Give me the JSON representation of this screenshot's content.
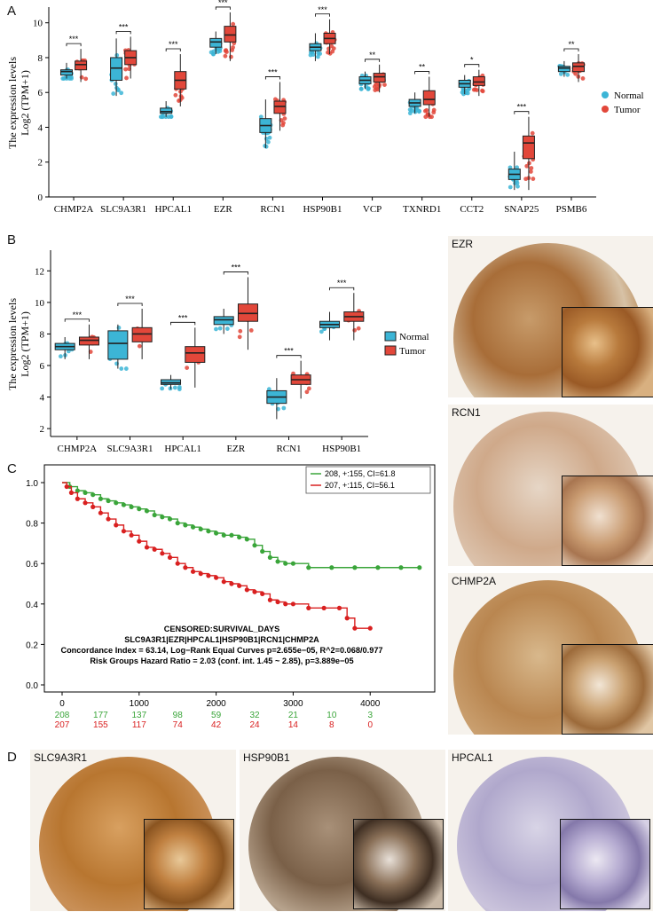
{
  "panels": {
    "a": "A",
    "b": "B",
    "c": "C",
    "d": "D"
  },
  "colors": {
    "normal": "#3cb5d6",
    "tumor": "#e2473a",
    "green": "#3aa53a",
    "red": "#d92020"
  },
  "panel_a": {
    "ylabel": "The expression levels",
    "ylabel2": "Log2 (TPM+1)",
    "legend": [
      "Normal",
      "Tumor"
    ],
    "chart_data": {
      "type": "box",
      "ylim": [
        0,
        10.8
      ],
      "yticks": [
        0,
        2,
        4,
        6,
        8,
        10
      ],
      "categories": [
        "CHMP2A",
        "SLC9A3R1",
        "HPCAL1",
        "EZR",
        "RCN1",
        "HSP90B1",
        "VCP",
        "TXNRD1",
        "CCT2",
        "SNAP25",
        "PSMB6"
      ],
      "significance": [
        "***",
        "***",
        "***",
        "***",
        "***",
        "***",
        "**",
        "**",
        "*",
        "***",
        "**"
      ],
      "series": [
        {
          "name": "Normal",
          "boxes": [
            [
              6.8,
              7.0,
              7.2,
              7.3,
              7.7
            ],
            [
              5.8,
              6.7,
              7.4,
              8.0,
              9.1
            ],
            [
              4.6,
              4.8,
              4.9,
              5.1,
              5.5
            ],
            [
              8.2,
              8.6,
              8.9,
              9.1,
              9.5
            ],
            [
              2.8,
              3.7,
              4.1,
              4.5,
              5.6
            ],
            [
              7.8,
              8.4,
              8.6,
              8.8,
              9.4
            ],
            [
              6.2,
              6.5,
              6.7,
              6.9,
              7.2
            ],
            [
              4.8,
              5.2,
              5.4,
              5.6,
              6.0
            ],
            [
              5.9,
              6.3,
              6.5,
              6.7,
              7.0
            ],
            [
              0.4,
              1.0,
              1.3,
              1.6,
              2.6
            ],
            [
              6.9,
              7.2,
              7.4,
              7.5,
              7.8
            ]
          ]
        },
        {
          "name": "Tumor",
          "boxes": [
            [
              6.6,
              7.3,
              7.6,
              7.8,
              8.5
            ],
            [
              6.8,
              7.6,
              8.0,
              8.4,
              9.2
            ],
            [
              5.2,
              6.2,
              6.7,
              7.2,
              8.2
            ],
            [
              7.8,
              8.9,
              9.3,
              9.8,
              10.6
            ],
            [
              3.8,
              4.8,
              5.2,
              5.5,
              6.6
            ],
            [
              8.2,
              8.8,
              9.1,
              9.4,
              10.2
            ],
            [
              6.0,
              6.6,
              6.9,
              7.1,
              7.6
            ],
            [
              4.6,
              5.3,
              5.6,
              6.1,
              6.9
            ],
            [
              5.8,
              6.4,
              6.6,
              6.9,
              7.3
            ],
            [
              0.4,
              2.2,
              3.1,
              3.5,
              4.6
            ],
            [
              6.6,
              7.2,
              7.5,
              7.7,
              8.2
            ]
          ]
        }
      ]
    }
  },
  "panel_b": {
    "ylabel": "The expression levels",
    "ylabel2": "Log2 (TPM+1)",
    "legend": [
      "Normal",
      "Tumor"
    ],
    "chart_data": {
      "type": "box",
      "ylim": [
        1.5,
        13.2
      ],
      "yticks": [
        2,
        4,
        6,
        8,
        10,
        12
      ],
      "categories": [
        "CHMP2A",
        "SLC9A3R1",
        "HPCAL1",
        "EZR",
        "RCN1",
        "HSP90B1"
      ],
      "significance": [
        "***",
        "***",
        "***",
        "***",
        "***",
        "***"
      ],
      "series": [
        {
          "name": "Normal",
          "boxes": [
            [
              6.4,
              7.0,
              7.2,
              7.4,
              7.8
            ],
            [
              5.8,
              6.4,
              7.4,
              8.2,
              8.6
            ],
            [
              4.5,
              4.8,
              4.9,
              5.1,
              5.4
            ],
            [
              8.0,
              8.6,
              8.9,
              9.1,
              9.6
            ],
            [
              2.6,
              3.6,
              4.0,
              4.4,
              5.2
            ],
            [
              7.6,
              8.4,
              8.6,
              8.8,
              9.4
            ]
          ]
        },
        {
          "name": "Tumor",
          "boxes": [
            [
              6.4,
              7.3,
              7.6,
              7.8,
              8.6
            ],
            [
              6.4,
              7.5,
              8.0,
              8.4,
              9.6
            ],
            [
              4.6,
              6.2,
              6.8,
              7.2,
              8.4
            ],
            [
              7.0,
              8.8,
              9.3,
              9.9,
              11.6
            ],
            [
              3.9,
              4.8,
              5.1,
              5.4,
              6.3
            ],
            [
              7.6,
              8.8,
              9.1,
              9.4,
              10.6
            ]
          ]
        }
      ]
    }
  },
  "panel_c": {
    "legend": [
      "208, +:155, CI=61.8",
      "207, +:115, CI=56.1"
    ],
    "annotation": [
      "CENSORED:SURVIVAL_DAYS",
      "SLC9A3R1|EZR|HPCAL1|HSP90B1|RCN1|CHMP2A",
      "Concordance Index = 63.14, Log−Rank Equal Curves p=2.655e−05, R^2=0.068/0.977",
      "Risk Groups Hazard Ratio = 2.03 (conf. int. 1.45 ~ 2.85), p=3.889e−05"
    ],
    "chart_data": {
      "type": "line",
      "xlim": [
        0,
        4700
      ],
      "ylim": [
        0,
        1.0
      ],
      "xticks": [
        0,
        1000,
        2000,
        3000,
        4000
      ],
      "yticks": [
        0.0,
        0.2,
        0.4,
        0.6,
        0.8,
        1.0
      ],
      "series": [
        {
          "name": "208, +:155, CI=61.8",
          "x": [
            0,
            100,
            200,
            300,
            400,
            500,
            600,
            700,
            800,
            900,
            1000,
            1100,
            1200,
            1300,
            1400,
            1500,
            1600,
            1700,
            1800,
            1900,
            2000,
            2100,
            2200,
            2300,
            2400,
            2500,
            2600,
            2700,
            2800,
            2900,
            3000,
            3200,
            3500,
            3800,
            4100,
            4400,
            4640
          ],
          "y": [
            1.0,
            0.98,
            0.96,
            0.95,
            0.94,
            0.92,
            0.91,
            0.9,
            0.89,
            0.88,
            0.87,
            0.86,
            0.84,
            0.83,
            0.82,
            0.8,
            0.79,
            0.78,
            0.77,
            0.76,
            0.75,
            0.74,
            0.74,
            0.73,
            0.72,
            0.69,
            0.66,
            0.63,
            0.61,
            0.6,
            0.6,
            0.58,
            0.58,
            0.58,
            0.58,
            0.58,
            0.58
          ]
        },
        {
          "name": "207, +:115, CI=56.1",
          "x": [
            0,
            60,
            120,
            200,
            300,
            400,
            500,
            600,
            700,
            800,
            900,
            1000,
            1100,
            1200,
            1300,
            1400,
            1500,
            1600,
            1700,
            1800,
            1900,
            2000,
            2100,
            2200,
            2300,
            2400,
            2500,
            2600,
            2700,
            2800,
            2900,
            3000,
            3200,
            3400,
            3600,
            3700,
            3800,
            4000
          ],
          "y": [
            1.0,
            0.98,
            0.95,
            0.92,
            0.9,
            0.88,
            0.85,
            0.82,
            0.79,
            0.76,
            0.74,
            0.71,
            0.68,
            0.67,
            0.65,
            0.63,
            0.6,
            0.58,
            0.56,
            0.55,
            0.54,
            0.53,
            0.51,
            0.5,
            0.49,
            0.47,
            0.46,
            0.45,
            0.42,
            0.41,
            0.4,
            0.4,
            0.38,
            0.38,
            0.38,
            0.33,
            0.28,
            0.28
          ]
        }
      ],
      "at_risk": {
        "x": [
          0,
          500,
          1000,
          1500,
          2000,
          2500,
          3000,
          3500,
          4000
        ],
        "rows": [
          [
            208,
            177,
            137,
            98,
            59,
            32,
            21,
            10,
            3
          ],
          [
            207,
            155,
            117,
            74,
            42,
            24,
            14,
            8,
            0
          ]
        ]
      }
    }
  },
  "ihc": [
    {
      "label": "EZR"
    },
    {
      "label": "RCN1"
    },
    {
      "label": "CHMP2A"
    },
    {
      "label": "SLC9A3R1"
    },
    {
      "label": "HSP90B1"
    },
    {
      "label": "HPCAL1"
    }
  ]
}
